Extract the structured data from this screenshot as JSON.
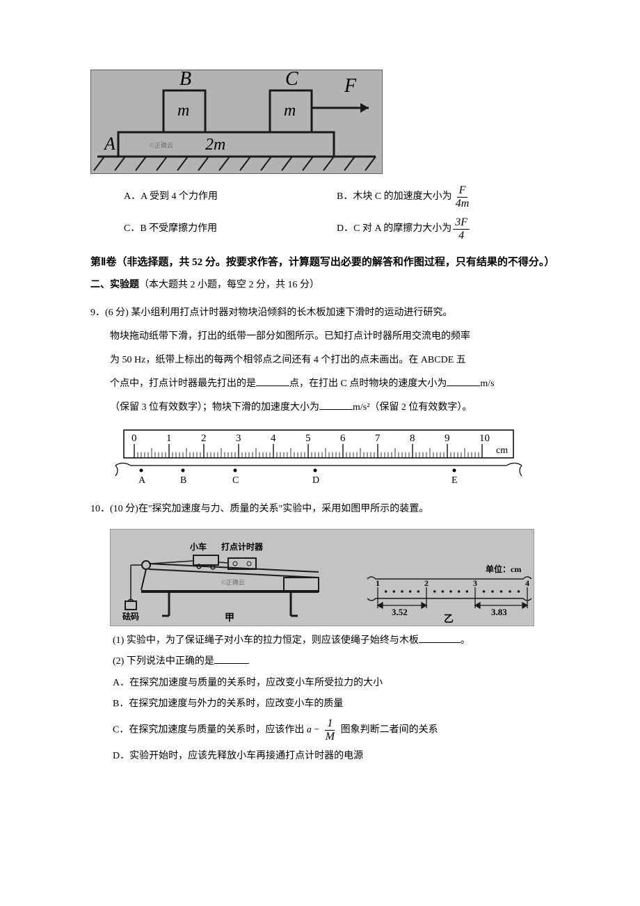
{
  "figure1": {
    "labels": {
      "B": "B",
      "C": "C",
      "F": "F",
      "A": "A",
      "m": "m",
      "two_m": "2m"
    },
    "colors": {
      "bg": "#b3b3b3",
      "line": "#2a2a2a"
    },
    "watermark": "©正确云"
  },
  "q_opts": {
    "A": "A．A 受到 4 个力作用",
    "B_pre": "B．木块 C 的加速度大小为",
    "B_num": "F",
    "B_den": "4m",
    "C": "C．B 不受摩擦力作用",
    "D_pre": "D．C 对 A 的摩擦力大小为",
    "D_num": "3F",
    "D_den": "4"
  },
  "section2": {
    "header": "第Ⅱ卷（非选择题，共 52 分。按要求作答，计算题写出必要的解答和作图过程，只有结果的不得分。）",
    "sub": "二、实验题（本大题共 2 小题，每空 2 分，共 16 分）"
  },
  "q9": {
    "num": "9．(6 分) ",
    "p1": "某小组利用打点计时器对物块沿倾斜的长木板加速下滑时的运动进行研究。",
    "p2": "物块拖动纸带下滑，打出的纸带一部分如图所示。已知打点计时器所用交流电的频率",
    "p3a": "为 50 Hz，纸带上标出的每两个相邻点之间还有 4 个打出的点未画出。在 ABCDE 五",
    "p3b": "个点中，打点计时器最先打出的是",
    "p3c": "点，在打出 C 点时物块的速度大小为",
    "p3d": "m/s",
    "p4a": "（保留 3 位有效数字）；物块下滑的加速度大小为",
    "p4b": "m/s²（保留 2 位有效数字）。"
  },
  "ruler": {
    "ticks": [
      "0",
      "1",
      "2",
      "3",
      "4",
      "5",
      "6",
      "7",
      "8",
      "9",
      "10"
    ],
    "unit": "cm",
    "points": [
      "A",
      "B",
      "C",
      "D",
      "E"
    ],
    "positions": [
      0.2,
      1.4,
      2.9,
      5.2,
      9.2
    ],
    "bg": "#ffffff",
    "line": "#000000"
  },
  "q10": {
    "num": "10．(10 分)",
    "intro": "在\"探究加速度与力、质量的关系\"实验中，采用如图甲所示的装置。"
  },
  "fig10": {
    "labels": {
      "car": "小车",
      "timer": "打点计时器",
      "weight": "砝码",
      "jia": "甲",
      "yi": "乙",
      "unit": "单位：cm"
    },
    "tape_marks": [
      "1",
      "2",
      "3",
      "4"
    ],
    "distances": [
      "3.52",
      "3.83"
    ],
    "colors": {
      "bg": "#c3c3c3",
      "line": "#1a1a1a"
    },
    "watermark": "©正确云"
  },
  "q10_sub": {
    "s1a": "(1) 实验中，为了保证绳子对小车的拉力恒定，则应该使绳子始终与木板",
    "s1b": "。",
    "s2": "(2) 下列说法中正确的是",
    "A": "A．在探究加速度与质量的关系时，应改变小车所受拉力的大小",
    "B": "B．在探究加速度与外力的关系时，应改变小车的质量",
    "C_pre": "C．在探究加速度与质量的关系时，应该作出",
    "C_expr_a": "a",
    "C_expr_num": "1",
    "C_expr_den": "M",
    "C_post": " 图象判断二者间的关系",
    "D": "D．实验开始时，应该先释放小车再接通打点计时器的电源"
  }
}
